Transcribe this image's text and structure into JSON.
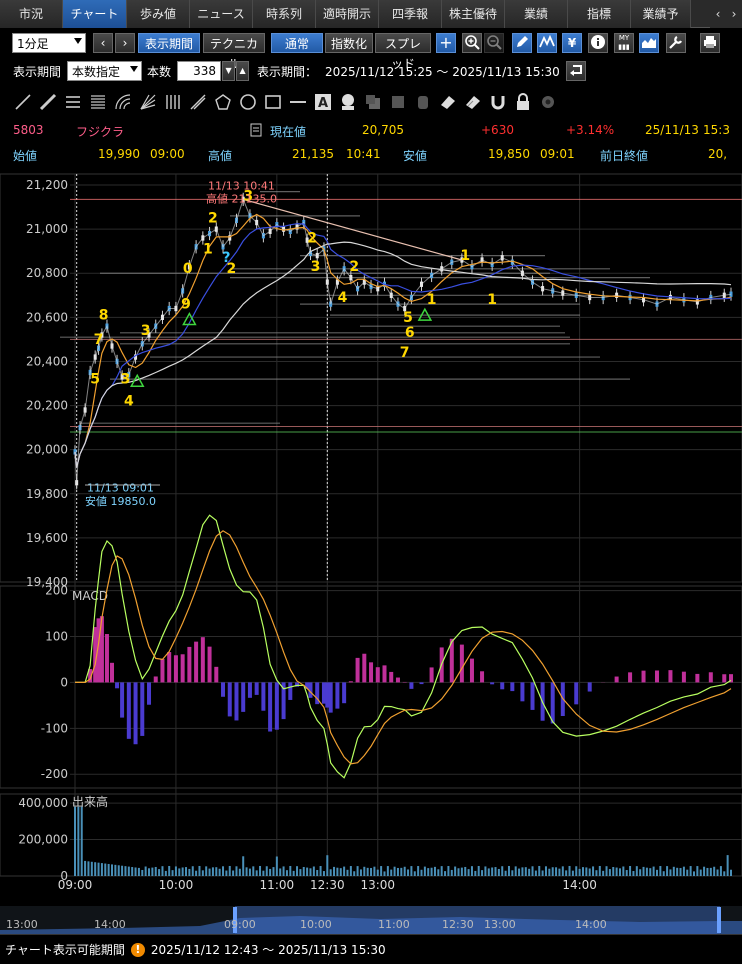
{
  "tabs": [
    "市況",
    "チャート",
    "歩み値",
    "ニュース",
    "時系列",
    "適時開示",
    "四季報",
    "株主優待",
    "業績",
    "指標",
    "業績予"
  ],
  "tab_nav": [
    "‹",
    "›"
  ],
  "toolbar1": {
    "period": "1分足",
    "prev": "‹",
    "next": "›",
    "display_period_btn": "表示期間",
    "technical_btn": "テクニカル",
    "normal_btn": "通常",
    "index_btn": "指数化",
    "spread_btn": "スプレッド"
  },
  "toolbar2": {
    "display_period_label": "表示期間",
    "display_period_value": "本数指定",
    "count_label": "本数",
    "count_value": "338",
    "range_label": "表示期間：",
    "range_value": "2025/11/12 15:25 ～ 2025/11/13 15:30"
  },
  "quote": {
    "code": "5803",
    "name": "フジクラ",
    "current_label": "現在値",
    "current": "20,705",
    "change": "+630",
    "change_pct": "+3.14%",
    "date": "25/11/13",
    "time": "15:3",
    "open_label": "始値",
    "open": "19,990",
    "open_time": "09:00",
    "high_label": "高値",
    "high": "21,135",
    "high_time": "10:41",
    "low_label": "安値",
    "low": "19,850",
    "low_time": "09:01",
    "prev_close_label": "前日終値",
    "prev_close": "20,"
  },
  "colors": {
    "up": "#ff3030",
    "accent_yellow": "#ffd800",
    "code_pink": "#ff5e8a",
    "label_cyan": "#7fd4ff",
    "macd_pos": "#c0309a",
    "macd_neg": "#4a3bd0"
  },
  "chart_data": [
    {
      "type": "candlestick",
      "title": "",
      "y_ticks": [
        "21,200",
        "21,000",
        "20,800",
        "20,600",
        "20,400",
        "20,200",
        "20,000",
        "19,800",
        "19,600",
        "19,400"
      ],
      "ylim": [
        19400,
        21250
      ],
      "x_ticks": [
        "09:00",
        "10:00",
        "11:00",
        "12:30",
        "13:00",
        "14:00"
      ],
      "x_minutes": [
        0,
        60,
        120,
        150,
        180,
        300
      ],
      "x_range_minutes": [
        0,
        390
      ],
      "price_path": [
        [
          0,
          19990
        ],
        [
          1,
          19850
        ],
        [
          3,
          20100
        ],
        [
          6,
          20180
        ],
        [
          9,
          20350
        ],
        [
          12,
          20420
        ],
        [
          14,
          20460
        ],
        [
          16,
          20520
        ],
        [
          19,
          20560
        ],
        [
          22,
          20470
        ],
        [
          25,
          20400
        ],
        [
          28,
          20330
        ],
        [
          32,
          20340
        ],
        [
          36,
          20420
        ],
        [
          40,
          20480
        ],
        [
          44,
          20520
        ],
        [
          48,
          20560
        ],
        [
          52,
          20600
        ],
        [
          56,
          20640
        ],
        [
          60,
          20640
        ],
        [
          64,
          20720
        ],
        [
          68,
          20830
        ],
        [
          72,
          20920
        ],
        [
          76,
          20960
        ],
        [
          80,
          20980
        ],
        [
          84,
          21000
        ],
        [
          88,
          20920
        ],
        [
          92,
          20960
        ],
        [
          96,
          21040
        ],
        [
          100,
          21135
        ],
        [
          104,
          21060
        ],
        [
          108,
          21030
        ],
        [
          112,
          20970
        ],
        [
          116,
          20990
        ],
        [
          120,
          21020
        ],
        [
          124,
          21000
        ],
        [
          128,
          20990
        ],
        [
          132,
          21010
        ],
        [
          136,
          21030
        ],
        [
          138,
          20950
        ],
        [
          140,
          20890
        ],
        [
          144,
          20880
        ],
        [
          148,
          20910
        ],
        [
          150,
          20760
        ],
        [
          152,
          20660
        ],
        [
          156,
          20760
        ],
        [
          160,
          20820
        ],
        [
          164,
          20780
        ],
        [
          168,
          20730
        ],
        [
          172,
          20760
        ],
        [
          176,
          20740
        ],
        [
          180,
          20730
        ],
        [
          184,
          20750
        ],
        [
          188,
          20700
        ],
        [
          192,
          20660
        ],
        [
          196,
          20640
        ],
        [
          200,
          20690
        ],
        [
          206,
          20750
        ],
        [
          212,
          20790
        ],
        [
          218,
          20820
        ],
        [
          224,
          20850
        ],
        [
          230,
          20860
        ],
        [
          236,
          20830
        ],
        [
          242,
          20860
        ],
        [
          248,
          20840
        ],
        [
          254,
          20870
        ],
        [
          260,
          20850
        ],
        [
          266,
          20800
        ],
        [
          272,
          20760
        ],
        [
          278,
          20730
        ],
        [
          284,
          20720
        ],
        [
          290,
          20710
        ],
        [
          298,
          20700
        ],
        [
          306,
          20690
        ],
        [
          314,
          20690
        ],
        [
          322,
          20700
        ],
        [
          330,
          20690
        ],
        [
          338,
          20680
        ],
        [
          346,
          20660
        ],
        [
          354,
          20690
        ],
        [
          362,
          20680
        ],
        [
          370,
          20670
        ],
        [
          378,
          20690
        ],
        [
          386,
          20700
        ],
        [
          390,
          20705
        ]
      ],
      "wave_labels": [
        {
          "text": "5",
          "t": 12,
          "v": 20300
        },
        {
          "text": "7",
          "t": 14,
          "v": 20480
        },
        {
          "text": "8",
          "t": 17,
          "v": 20590
        },
        {
          "text": "3",
          "t": 30,
          "v": 20300
        },
        {
          "text": "4",
          "t": 32,
          "v": 20200
        },
        {
          "text": "3",
          "t": 42,
          "v": 20520
        },
        {
          "text": "9",
          "t": 66,
          "v": 20640
        },
        {
          "text": "0",
          "t": 67,
          "v": 20800
        },
        {
          "text": "1",
          "t": 79,
          "v": 20890
        },
        {
          "text": "2",
          "t": 82,
          "v": 21030
        },
        {
          "text": "2",
          "t": 93,
          "v": 20800
        },
        {
          "text": "3",
          "t": 103,
          "v": 21130
        },
        {
          "text": "2",
          "t": 141,
          "v": 20940
        },
        {
          "text": "3",
          "t": 143,
          "v": 20810
        },
        {
          "text": "4",
          "t": 159,
          "v": 20670
        },
        {
          "text": "2",
          "t": 166,
          "v": 20810
        },
        {
          "text": "5",
          "t": 198,
          "v": 20580
        },
        {
          "text": "6",
          "t": 199,
          "v": 20510
        },
        {
          "text": "7",
          "t": 196,
          "v": 20420
        },
        {
          "text": "1",
          "t": 212,
          "v": 20660
        },
        {
          "text": "1",
          "t": 232,
          "v": 20860
        },
        {
          "text": "1",
          "t": 248,
          "v": 20660
        }
      ],
      "annotations": {
        "high_time": "11/13 10:41",
        "high_label": "高値 21135.0",
        "low_time": "11/13 09:01",
        "low_label": "安値 19850.0"
      }
    },
    {
      "type": "line",
      "title": "MACD",
      "y_ticks": [
        "200",
        "100",
        "0",
        "-100",
        "-200"
      ],
      "ylim": [
        -230,
        210
      ]
    },
    {
      "type": "bar",
      "title": "出来高",
      "y_ticks": [
        "400,000",
        "200,000",
        "0"
      ],
      "ylim": [
        0,
        450000
      ]
    }
  ],
  "navigator": {
    "labels": [
      "13:00",
      "14:00",
      "09:00",
      "10:00",
      "11:00",
      "12:30",
      "13:00",
      "14:00"
    ]
  },
  "status": {
    "label": "チャート表示可能期間",
    "range": "2025/11/12 12:43 ～ 2025/11/13 15:30"
  }
}
